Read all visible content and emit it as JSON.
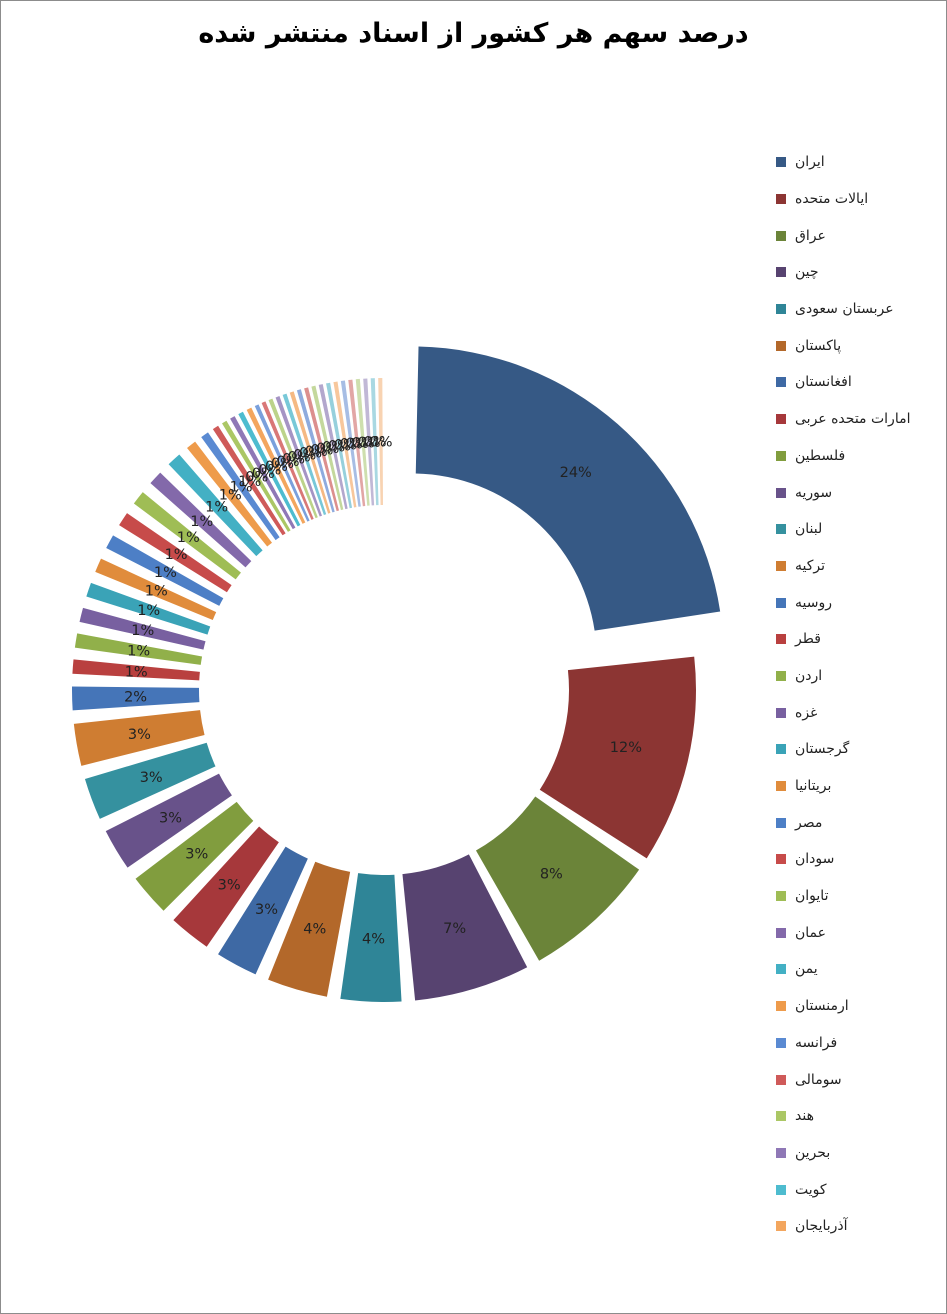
{
  "chart_data": {
    "type": "pie",
    "style": "doughnut-exploded",
    "title": "درصد سهم هر کشور از اسناد منتشر شده",
    "slices": [
      {
        "label": "ایران",
        "value": 24,
        "color": "#365985",
        "data_label": "24%"
      },
      {
        "label": "ایالات متحده",
        "value": 12,
        "color": "#8c3533",
        "data_label": "12%"
      },
      {
        "label": "عراق",
        "value": 8,
        "color": "#6b8439",
        "data_label": "8%"
      },
      {
        "label": "چین",
        "value": 7,
        "color": "#574370",
        "data_label": "7%"
      },
      {
        "label": "عربستان سعودی",
        "value": 4,
        "color": "#2f8597",
        "data_label": "4%"
      },
      {
        "label": "پاکستان",
        "value": 4,
        "color": "#b3682a",
        "data_label": "4%"
      },
      {
        "label": "افغانستان",
        "value": 3,
        "color": "#3e69a4",
        "data_label": "3%"
      },
      {
        "label": "امارات متحده عربی",
        "value": 3,
        "color": "#a6383b",
        "data_label": "3%"
      },
      {
        "label": "فلسطین",
        "value": 3,
        "color": "#819d3e",
        "data_label": "3%"
      },
      {
        "label": "سوریه",
        "value": 3,
        "color": "#68528a",
        "data_label": "3%"
      },
      {
        "label": "لبنان",
        "value": 3,
        "color": "#35919f",
        "data_label": "3%"
      },
      {
        "label": "ترکیه",
        "value": 3,
        "color": "#cf7d32",
        "data_label": "3%"
      },
      {
        "label": "روسیه",
        "value": 2,
        "color": "#4575b8",
        "data_label": "2%"
      },
      {
        "label": "قطر",
        "value": 1.4,
        "color": "#b9403f",
        "data_label": "1%"
      },
      {
        "label": "اردن",
        "value": 1.4,
        "color": "#91b04a",
        "data_label": "1%"
      },
      {
        "label": "غزه",
        "value": 1.4,
        "color": "#7860a0",
        "data_label": "1%"
      },
      {
        "label": "گرجستان",
        "value": 1.4,
        "color": "#3aa3b7",
        "data_label": "1%"
      },
      {
        "label": "بریتانیا",
        "value": 1.4,
        "color": "#e08c3c",
        "data_label": "1%"
      },
      {
        "label": "مصر",
        "value": 1.4,
        "color": "#4d7fc6",
        "data_label": "1%"
      },
      {
        "label": "سودان",
        "value": 1.4,
        "color": "#c74b4a",
        "data_label": "1%"
      },
      {
        "label": "تایوان",
        "value": 1.4,
        "color": "#9fbd55",
        "data_label": "1%"
      },
      {
        "label": "عمان",
        "value": 1.4,
        "color": "#8369aa",
        "data_label": "1%"
      },
      {
        "label": "یمن",
        "value": 1.4,
        "color": "#43b0c4",
        "data_label": "1%"
      },
      {
        "label": "ارمنستان",
        "value": 1.0,
        "color": "#ee9b4b",
        "data_label": "1%"
      },
      {
        "label": "فرانسه",
        "value": 0.8,
        "color": "#5a8ad2",
        "data_label": "1%"
      },
      {
        "label": "سومالی",
        "value": 0.6,
        "color": "#cf5a59",
        "data_label": "1%"
      },
      {
        "label": "هند",
        "value": 0.5,
        "color": "#abc765",
        "data_label": "0%"
      },
      {
        "label": "بحرین",
        "value": 0.5,
        "color": "#8f78b6",
        "data_label": "0%"
      },
      {
        "label": "کویت",
        "value": 0.5,
        "color": "#4ebccf",
        "data_label": "0%"
      },
      {
        "label": "آذربایجان",
        "value": 0.5,
        "color": "#f3a65e",
        "data_label": "0%"
      },
      {
        "label": "",
        "value": 0.4,
        "color": "#7aa0dc",
        "data_label": "0%"
      },
      {
        "label": "",
        "value": 0.4,
        "color": "#d97877",
        "data_label": "0%"
      },
      {
        "label": "",
        "value": 0.4,
        "color": "#bcd38a",
        "data_label": "0%"
      },
      {
        "label": "",
        "value": 0.4,
        "color": "#a594c4",
        "data_label": "0%"
      },
      {
        "label": "",
        "value": 0.4,
        "color": "#78c8d8",
        "data_label": "0%"
      },
      {
        "label": "",
        "value": 0.4,
        "color": "#f5b983",
        "data_label": "0%"
      },
      {
        "label": "",
        "value": 0.4,
        "color": "#8eabde",
        "data_label": "0%"
      },
      {
        "label": "",
        "value": 0.4,
        "color": "#dc8f8e",
        "data_label": "0%"
      },
      {
        "label": "",
        "value": 0.4,
        "color": "#c4d89c",
        "data_label": "0%"
      },
      {
        "label": "",
        "value": 0.4,
        "color": "#b3a7cd",
        "data_label": "0%"
      },
      {
        "label": "",
        "value": 0.4,
        "color": "#96d0dc",
        "data_label": "0%"
      },
      {
        "label": "",
        "value": 0.4,
        "color": "#f7c79c",
        "data_label": "0%"
      },
      {
        "label": "",
        "value": 0.4,
        "color": "#a7bde4",
        "data_label": "0%"
      },
      {
        "label": "",
        "value": 0.4,
        "color": "#e2a6a5",
        "data_label": "0%"
      },
      {
        "label": "",
        "value": 0.4,
        "color": "#cedfae",
        "data_label": "0%"
      },
      {
        "label": "",
        "value": 0.4,
        "color": "#c1b8d6",
        "data_label": "0%"
      },
      {
        "label": "",
        "value": 0.4,
        "color": "#a9d8e2",
        "data_label": "0%"
      },
      {
        "label": "",
        "value": 0.4,
        "color": "#f8d3b2",
        "data_label": "0%"
      }
    ],
    "legend": {
      "placement": "right",
      "entries": [
        "ایران",
        "ایالات متحده",
        "عراق",
        "چین",
        "عربستان سعودی",
        "پاکستان",
        "افغانستان",
        "امارات متحده عربی",
        "فلسطین",
        "سوریه",
        "لبنان",
        "ترکیه",
        "روسیه",
        "قطر",
        "اردن",
        "غزه",
        "گرجستان",
        "بریتانیا",
        "مصر",
        "سودان",
        "تایوان",
        "عمان",
        "یمن",
        "ارمنستان",
        "فرانسه",
        "سومالی",
        "هند",
        "بحرین",
        "کویت",
        "آذربایجان"
      ]
    }
  }
}
